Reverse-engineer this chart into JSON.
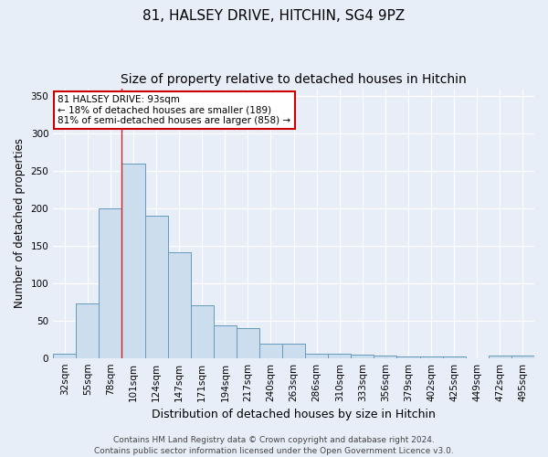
{
  "title": "81, HALSEY DRIVE, HITCHIN, SG4 9PZ",
  "subtitle": "Size of property relative to detached houses in Hitchin",
  "xlabel": "Distribution of detached houses by size in Hitchin",
  "ylabel": "Number of detached properties",
  "categories": [
    "32sqm",
    "55sqm",
    "78sqm",
    "101sqm",
    "124sqm",
    "147sqm",
    "171sqm",
    "194sqm",
    "217sqm",
    "240sqm",
    "263sqm",
    "286sqm",
    "310sqm",
    "333sqm",
    "356sqm",
    "379sqm",
    "402sqm",
    "425sqm",
    "449sqm",
    "472sqm",
    "495sqm"
  ],
  "values": [
    6,
    73,
    200,
    260,
    190,
    141,
    70,
    43,
    40,
    19,
    19,
    6,
    6,
    5,
    3,
    2,
    2,
    2,
    0,
    3,
    3
  ],
  "bar_color": "#ccdded",
  "bar_edge_color": "#6699bb",
  "red_line_x": 2.5,
  "annotation_title": "81 HALSEY DRIVE: 93sqm",
  "annotation_line1": "← 18% of detached houses are smaller (189)",
  "annotation_line2": "81% of semi-detached houses are larger (858) →",
  "annotation_box_color": "#ffffff",
  "annotation_border_color": "#cc0000",
  "ylim": [
    0,
    360
  ],
  "yticks": [
    0,
    50,
    100,
    150,
    200,
    250,
    300,
    350
  ],
  "background_color": "#e8eef8",
  "grid_color": "#ffffff",
  "footnote": "Contains HM Land Registry data © Crown copyright and database right 2024.\nContains public sector information licensed under the Open Government Licence v3.0.",
  "title_fontsize": 11,
  "subtitle_fontsize": 10,
  "xlabel_fontsize": 9,
  "ylabel_fontsize": 8.5,
  "tick_fontsize": 7.5,
  "annotation_fontsize": 7.5,
  "footnote_fontsize": 6.5
}
